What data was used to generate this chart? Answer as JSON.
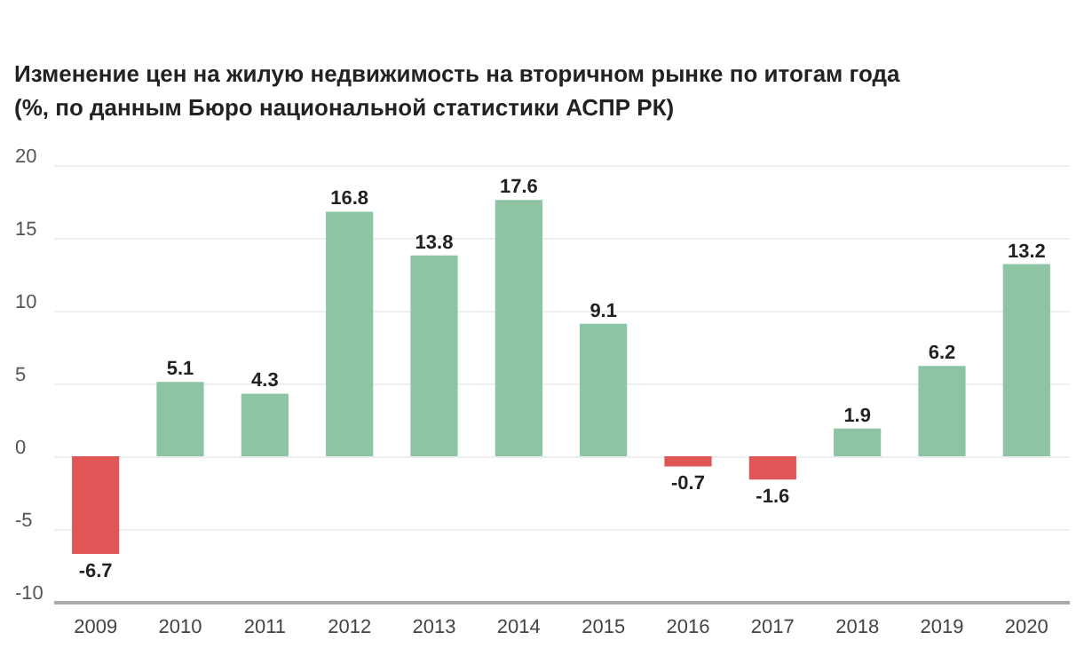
{
  "chart_data": {
    "type": "bar",
    "title": "Изменение цен на жилую недвижимость на вторичном рынке по итогам года",
    "subtitle": "(%, по данным Бюро национальной статистики АСПР РК)",
    "categories": [
      "2009",
      "2010",
      "2011",
      "2012",
      "2013",
      "2014",
      "2015",
      "2016",
      "2017",
      "2018",
      "2019",
      "2020"
    ],
    "values": [
      -6.7,
      5.1,
      4.3,
      16.8,
      13.8,
      17.6,
      9.1,
      -0.7,
      -1.6,
      1.9,
      6.2,
      13.2
    ],
    "colors": [
      "#e05555",
      "#8dc4a4",
      "#8dc4a4",
      "#8dc4a4",
      "#8dc4a4",
      "#8dc4a4",
      "#8dc4a4",
      "#e05555",
      "#e05555",
      "#8dc4a4",
      "#8dc4a4",
      "#8dc4a4"
    ],
    "ylim": [
      -10,
      20
    ],
    "yticks": [
      -10,
      -5,
      0,
      5,
      10,
      15,
      20
    ],
    "grid": "y",
    "data_labels": true
  }
}
